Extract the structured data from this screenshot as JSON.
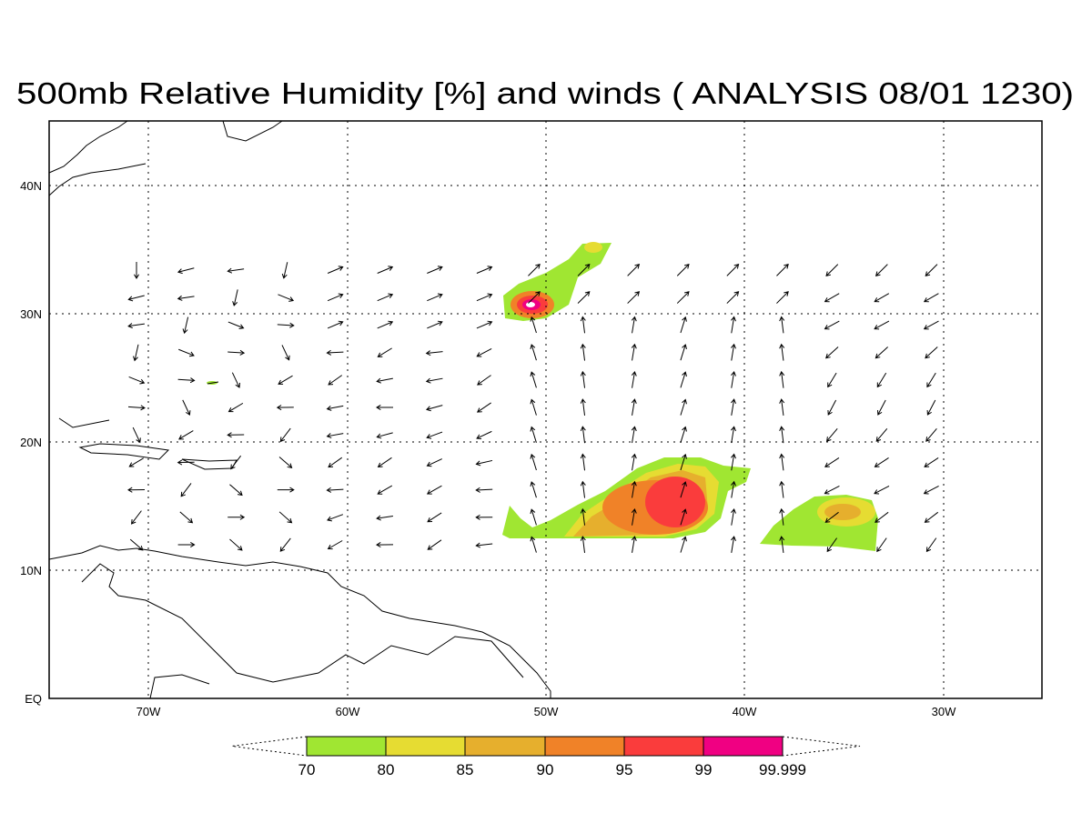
{
  "title": "500mb Relative Humidity [%] and winds ( ANALYSIS 08/01 1230)",
  "map": {
    "lon_labels": [
      "70W",
      "60W",
      "50W",
      "40W",
      "30W"
    ],
    "lat_labels": [
      "EQ",
      "10N",
      "20N",
      "30N",
      "40N"
    ],
    "colorbar": {
      "levels": [
        "70",
        "80",
        "85",
        "90",
        "95",
        "99",
        "99.999"
      ],
      "colors": [
        "#a0e632",
        "#e6dc32",
        "#e6af2d",
        "#f08228",
        "#fa3c3c",
        "#f00082"
      ]
    }
  }
}
